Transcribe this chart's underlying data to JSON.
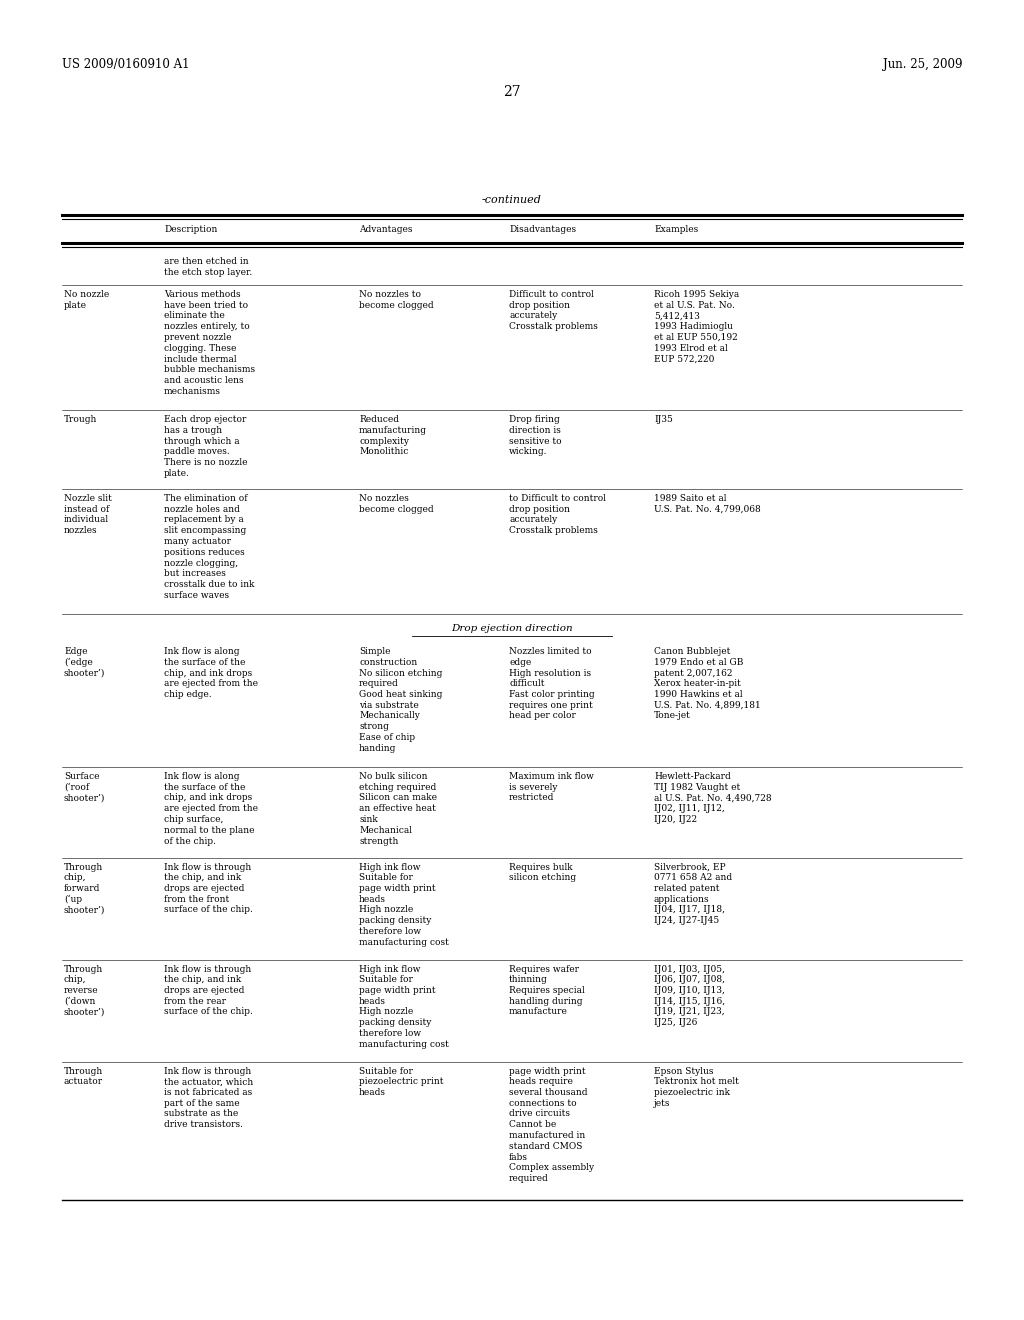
{
  "patent_number": "US 2009/0160910 A1",
  "date": "Jun. 25, 2009",
  "page_number": "27",
  "continued_label": "-continued",
  "headers": [
    "Description",
    "Advantages",
    "Disadvantages",
    "Examples"
  ],
  "rows": [
    {
      "label": "",
      "description": "are then etched in\nthe etch stop layer.",
      "advantages": "",
      "disadvantages": "",
      "examples": ""
    },
    {
      "label": "No nozzle\nplate",
      "description": "Various methods\nhave been tried to\neliminate the\nnozzles entirely, to\nprevent nozzle\nclogging. These\ninclude thermal\nbubble mechanisms\nand acoustic lens\nmechanisms",
      "advantages": "No nozzles to\nbecome clogged",
      "disadvantages": "Difficult to control\ndrop position\naccurately\nCrosstalk problems",
      "examples": "Ricoh 1995 Sekiya\net al U.S. Pat. No.\n5,412,413\n1993 Hadimioglu\net al EUP 550,192\n1993 Elrod et al\nEUP 572,220"
    },
    {
      "label": "Trough",
      "description": "Each drop ejector\nhas a trough\nthrough which a\npaddle moves.\nThere is no nozzle\nplate.",
      "advantages": "Reduced\nmanufacturing\ncomplexity\nMonolithic",
      "disadvantages": "Drop firing\ndirection is\nsensitive to\nwicking.",
      "examples": "IJ35"
    },
    {
      "label": "Nozzle slit\ninstead of\nindividual\nnozzles",
      "description": "The elimination of\nnozzle holes and\nreplacement by a\nslit encompassing\nmany actuator\npositions reduces\nnozzle clogging,\nbut increases\ncrosstalk due to ink\nsurface waves",
      "advantages": "No nozzles\nbecome clogged",
      "disadvantages": "to Difficult to control\ndrop position\naccurately\nCrosstalk problems",
      "examples": "1989 Saito et al\nU.S. Pat. No. 4,799,068"
    },
    {
      "label": "section_header",
      "description": "Drop ejection direction",
      "advantages": "",
      "disadvantages": "",
      "examples": ""
    },
    {
      "label": "Edge\n(‘edge\nshooter’)",
      "description": "Ink flow is along\nthe surface of the\nchip, and ink drops\nare ejected from the\nchip edge.",
      "advantages": "Simple\nconstruction\nNo silicon etching\nrequired\nGood heat sinking\nvia substrate\nMechanically\nstrong\nEase of chip\nhanding",
      "disadvantages": "Nozzles limited to\nedge\nHigh resolution is\ndifficult\nFast color printing\nrequires one print\nhead per color",
      "examples": "Canon Bubblejet\n1979 Endo et al GB\npatent 2,007,162\nXerox heater-in-pit\n1990 Hawkins et al\nU.S. Pat. No. 4,899,181\nTone-jet"
    },
    {
      "label": "Surface\n(‘roof\nshooter’)",
      "description": "Ink flow is along\nthe surface of the\nchip, and ink drops\nare ejected from the\nchip surface,\nnormal to the plane\nof the chip.",
      "advantages": "No bulk silicon\netching required\nSilicon can make\nan effective heat\nsink\nMechanical\nstrength",
      "disadvantages": "Maximum ink flow\nis severely\nrestricted",
      "examples": "Hewlett-Packard\nTIJ 1982 Vaught et\nal U.S. Pat. No. 4,490,728\nIJ02, IJ11, IJ12,\nIJ20, IJ22"
    },
    {
      "label": "Through\nchip,\nforward\n(‘up\nshooter’)",
      "description": "Ink flow is through\nthe chip, and ink\ndrops are ejected\nfrom the front\nsurface of the chip.",
      "advantages": "High ink flow\nSuitable for\npage width print\nheads\nHigh nozzle\npacking density\ntherefore low\nmanufacturing cost",
      "disadvantages": "Requires bulk\nsilicon etching",
      "examples": "Silverbrook, EP\n0771 658 A2 and\nrelated patent\napplications\nIJ04, IJ17, IJ18,\nIJ24, IJ27-IJ45"
    },
    {
      "label": "Through\nchip,\nreverse\n(‘down\nshooter’)",
      "description": "Ink flow is through\nthe chip, and ink\ndrops are ejected\nfrom the rear\nsurface of the chip.",
      "advantages": "High ink flow\nSuitable for\npage width print\nheads\nHigh nozzle\npacking density\ntherefore low\nmanufacturing cost",
      "disadvantages": "Requires wafer\nthinning\nRequires special\nhandling during\nmanufacture",
      "examples": "IJ01, IJ03, IJ05,\nIJ06, IJ07, IJ08,\nIJ09, IJ10, IJ13,\nIJ14, IJ15, IJ16,\nIJ19, IJ21, IJ23,\nIJ25, IJ26"
    },
    {
      "label": "Through\nactuator",
      "description": "Ink flow is through\nthe actuator, which\nis not fabricated as\npart of the same\nsubstrate as the\ndrive transistors.",
      "advantages": "Suitable for\npiezoelectric print\nheads",
      "disadvantages": "page width print\nheads require\nseveral thousand\nconnections to\ndrive circuits\nCannot be\nmanufactured in\nstandard CMOS\nfabs\nComplex assembly\nrequired",
      "examples": "Epson Stylus\nTektronix hot melt\npiezoelectric ink\njets"
    }
  ],
  "font_size": 6.5,
  "background_color": "#ffffff",
  "text_color": "#000000",
  "line_color": "#000000",
  "figwidth": 10.24,
  "figheight": 13.2,
  "dpi": 100
}
